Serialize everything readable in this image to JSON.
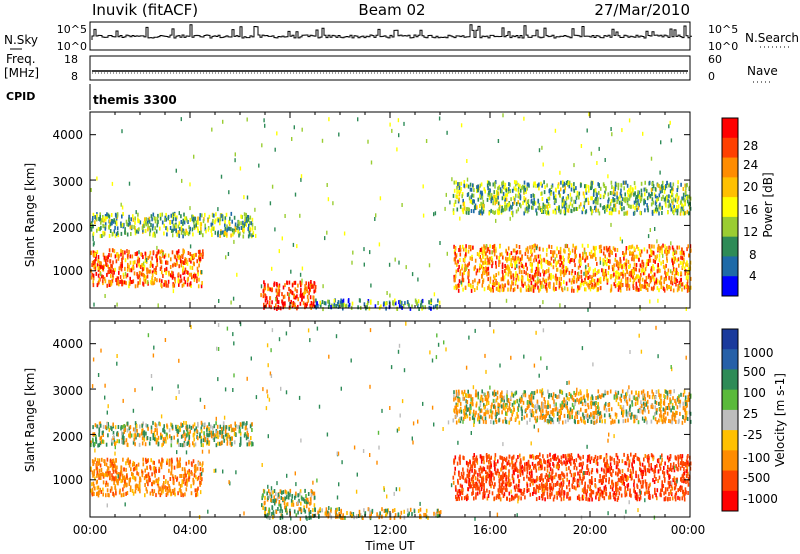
{
  "header": {
    "station": "Inuvik (fitACF)",
    "beam": "Beam 02",
    "date": "27/Mar/2010"
  },
  "panels": {
    "nsky": {
      "label": "N.Sky",
      "right_label": "N.Search",
      "left_ticks": [
        "10^5",
        "10^0"
      ],
      "right_ticks": [
        "10^5",
        "10^0"
      ]
    },
    "freq": {
      "label": "Freq.",
      "unit": "[MHz]",
      "right_label": "Nave",
      "left_ticks": [
        "18",
        "8"
      ],
      "right_ticks": [
        "60",
        "0"
      ]
    },
    "cpid": {
      "label": "CPID",
      "value": "themis 3300"
    }
  },
  "time_axis": {
    "label": "Time UT",
    "ticks": [
      "00:00",
      "04:00",
      "08:00",
      "12:00",
      "16:00",
      "20:00",
      "00:00"
    ]
  },
  "power": {
    "ylabel": "Slant Range [km]",
    "yticks": [
      "4000",
      "3000",
      "2000",
      "1000"
    ],
    "colorbar_label": "Power [dB]",
    "colorbar_ticks": [
      "28",
      "24",
      "20",
      "16",
      "12",
      "8",
      "4"
    ],
    "colors": [
      "#ff0000",
      "#ff4000",
      "#ff8c00",
      "#ffc000",
      "#ffff00",
      "#9acd32",
      "#2e8b57",
      "#1e6aa8",
      "#0000ff"
    ]
  },
  "velocity": {
    "ylabel": "Slant Range [km]",
    "yticks": [
      "4000",
      "3000",
      "2000",
      "1000"
    ],
    "colorbar_label": "Velocity [m s-1]",
    "colorbar_ticks": [
      "1000",
      "500",
      "100",
      "25",
      "-25",
      "-100",
      "-500",
      "-1000"
    ],
    "colors": [
      "#1a3a9c",
      "#2660a8",
      "#2e8b57",
      "#5aba3a",
      "#bdbdbd",
      "#ffc000",
      "#ff8c00",
      "#ff4500",
      "#ff0000"
    ]
  },
  "chart_data": {
    "type": "heatmap",
    "title": "Inuvik (fitACF)  Beam 02  27/Mar/2010",
    "xlabel": "Time UT",
    "ylabel": "Slant Range [km]",
    "xlim": [
      "00:00",
      "24:00"
    ],
    "ylim": [
      180,
      4500
    ],
    "series": [
      {
        "name": "Power [dB]",
        "clim": [
          0,
          30
        ]
      },
      {
        "name": "Velocity [m s-1]",
        "clim": [
          -1000,
          1000
        ]
      }
    ],
    "regions": [
      {
        "t": [
          0.0,
          4.5
        ],
        "range": [
          700,
          1500
        ],
        "power": 24,
        "velocity": -300
      },
      {
        "t": [
          0.0,
          6.5
        ],
        "range": [
          1800,
          2300
        ],
        "power": 10,
        "velocity": 20
      },
      {
        "t": [
          6.8,
          9.0
        ],
        "range": [
          200,
          800
        ],
        "power": 28,
        "velocity": 50
      },
      {
        "t": [
          9.0,
          14.0
        ],
        "range": [
          200,
          400
        ],
        "power": 8,
        "velocity": -80
      },
      {
        "t": [
          14.5,
          24.0
        ],
        "range": [
          600,
          1600
        ],
        "power": 22,
        "velocity": -600
      },
      {
        "t": [
          14.5,
          24.0
        ],
        "range": [
          2300,
          3000
        ],
        "power": 10,
        "velocity": -100
      }
    ]
  }
}
